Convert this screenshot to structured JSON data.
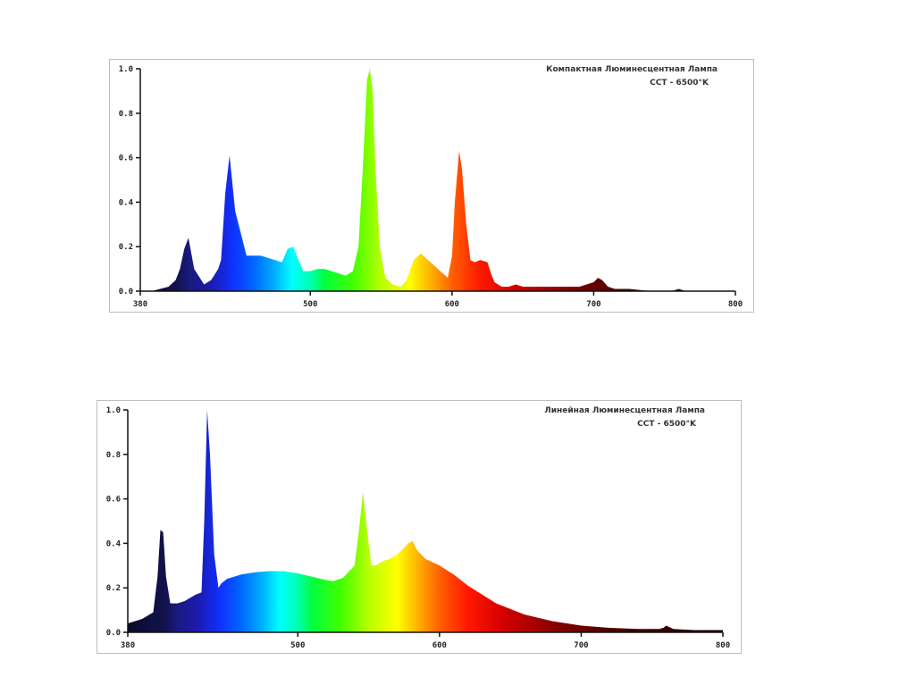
{
  "chart_data": [
    {
      "type": "area",
      "title": "Компактная Люминесцентная Лампа",
      "subtitle": "CCT - 6500°K",
      "xlabel": "",
      "ylabel": "",
      "xlim": [
        380,
        800
      ],
      "ylim": [
        0.0,
        1.0
      ],
      "x_ticks": [
        "380",
        "500",
        "600",
        "700",
        "800"
      ],
      "y_ticks": [
        "0.0",
        "0.2",
        "0.4",
        "0.6",
        "0.8",
        "1.0"
      ],
      "grid": false,
      "fill": "visible-spectrum colour gradient",
      "x": [
        388,
        400,
        405,
        408,
        411,
        414,
        418,
        425,
        430,
        432,
        435,
        437,
        440,
        443,
        447,
        455,
        465,
        475,
        480,
        484,
        488,
        491,
        495,
        500,
        505,
        510,
        515,
        520,
        525,
        530,
        534,
        537,
        540,
        542,
        544,
        546,
        549,
        553,
        558,
        564,
        568,
        573,
        578,
        583,
        590,
        597,
        600,
        602,
        605,
        607,
        610,
        613,
        616,
        620,
        625,
        628,
        630,
        635,
        640,
        645,
        650,
        660,
        670,
        680,
        690,
        695,
        700,
        703,
        706,
        710,
        715,
        725,
        740,
        755,
        760,
        765,
        800
      ],
      "y": [
        0.0,
        0.02,
        0.05,
        0.1,
        0.19,
        0.24,
        0.1,
        0.03,
        0.05,
        0.07,
        0.1,
        0.14,
        0.44,
        0.61,
        0.36,
        0.16,
        0.16,
        0.14,
        0.13,
        0.19,
        0.2,
        0.15,
        0.09,
        0.09,
        0.1,
        0.1,
        0.09,
        0.08,
        0.07,
        0.09,
        0.2,
        0.55,
        0.95,
        1.0,
        0.9,
        0.55,
        0.2,
        0.06,
        0.03,
        0.02,
        0.05,
        0.14,
        0.17,
        0.14,
        0.1,
        0.06,
        0.16,
        0.4,
        0.63,
        0.55,
        0.3,
        0.14,
        0.13,
        0.14,
        0.13,
        0.07,
        0.04,
        0.02,
        0.02,
        0.03,
        0.02,
        0.02,
        0.02,
        0.02,
        0.02,
        0.03,
        0.04,
        0.06,
        0.05,
        0.02,
        0.01,
        0.01,
        0.0,
        0.0,
        0.01,
        0.0,
        0.0
      ]
    },
    {
      "type": "area",
      "title": "Линейная Люминесцентная Лампа",
      "subtitle": "CCT - 6500°K",
      "xlabel": "",
      "ylabel": "",
      "xlim": [
        380,
        800
      ],
      "ylim": [
        0.0,
        1.0
      ],
      "x_ticks": [
        "380",
        "500",
        "600",
        "700",
        "800"
      ],
      "y_ticks": [
        "0.0",
        "0.2",
        "0.4",
        "0.6",
        "0.8",
        "1.0"
      ],
      "grid": false,
      "fill": "visible-spectrum colour gradient",
      "x": [
        380,
        390,
        398,
        401,
        403,
        405,
        407,
        410,
        415,
        420,
        428,
        432,
        434,
        436,
        438,
        441,
        444,
        446,
        450,
        460,
        470,
        480,
        490,
        500,
        510,
        520,
        525,
        532,
        540,
        543,
        546,
        549,
        552,
        555,
        560,
        565,
        570,
        575,
        578,
        581,
        584,
        590,
        600,
        610,
        620,
        640,
        660,
        680,
        700,
        720,
        740,
        755,
        758,
        760,
        765,
        780,
        800
      ],
      "y": [
        0.04,
        0.06,
        0.09,
        0.25,
        0.46,
        0.45,
        0.25,
        0.13,
        0.13,
        0.14,
        0.17,
        0.18,
        0.5,
        1.0,
        0.8,
        0.35,
        0.2,
        0.22,
        0.24,
        0.26,
        0.27,
        0.275,
        0.275,
        0.265,
        0.25,
        0.235,
        0.23,
        0.245,
        0.3,
        0.45,
        0.63,
        0.45,
        0.3,
        0.3,
        0.32,
        0.33,
        0.35,
        0.38,
        0.4,
        0.41,
        0.37,
        0.33,
        0.3,
        0.26,
        0.21,
        0.13,
        0.08,
        0.05,
        0.03,
        0.02,
        0.015,
        0.015,
        0.02,
        0.03,
        0.015,
        0.01,
        0.01
      ]
    }
  ]
}
